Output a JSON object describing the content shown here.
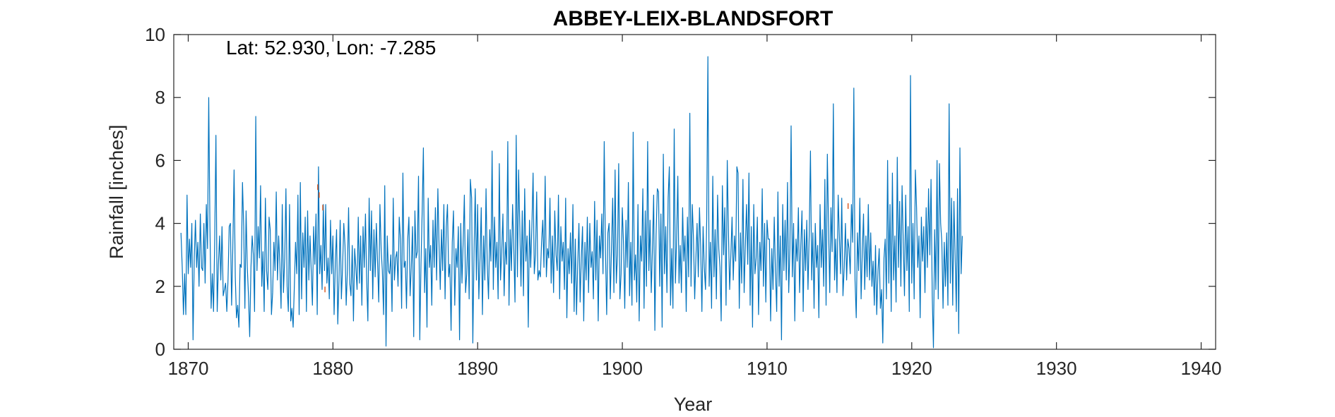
{
  "chart_data": {
    "type": "line",
    "title": "ABBEY-LEIX-BLANDSFORT",
    "xlabel": "Year",
    "ylabel": "Rainfall [inches]",
    "annotation": "Lat: 52.930, Lon: -7.285",
    "xlim": [
      1869,
      1941
    ],
    "ylim": [
      0,
      10
    ],
    "x_ticks": [
      1870,
      1880,
      1890,
      1900,
      1910,
      1920,
      1930,
      1940
    ],
    "y_ticks": [
      0,
      2,
      4,
      6,
      8,
      10
    ],
    "x_tick_labels": [
      "1870",
      "1880",
      "1890",
      "1900",
      "1910",
      "1920",
      "1930",
      "1940"
    ],
    "y_tick_labels": [
      "0",
      "2",
      "4",
      "6",
      "8",
      "10"
    ],
    "grid": false,
    "colors": {
      "series": "#0072BD",
      "secondary": "#D95319",
      "axes": "#262626"
    },
    "series": [
      {
        "start_year": 1869.5,
        "step_years": 0.08333,
        "values": [
          3.7,
          2.6,
          1.1,
          2.4,
          1.1,
          4.9,
          2.4,
          3.5,
          2.6,
          4.0,
          0.3,
          2.9,
          4.1,
          2.6,
          3.4,
          2.0,
          4.3,
          2.6,
          2.5,
          4.0,
          2.1,
          4.6,
          3.2,
          8.0,
          3.9,
          1.3,
          2.4,
          1.2,
          3.5,
          6.8,
          1.2,
          2.7,
          3.6,
          2.2,
          3.9,
          1.7,
          1.9,
          2.1,
          1.2,
          2.2,
          3.9,
          4.0,
          1.4,
          3.2,
          5.7,
          2.3,
          1.0,
          1.4,
          0.7,
          2.7,
          2.6,
          5.3,
          3.9,
          1.3,
          4.4,
          2.6,
          1.7,
          0.4,
          2.6,
          3.6,
          3.0,
          1.2,
          7.4,
          2.5,
          3.9,
          2.9,
          5.2,
          2.0,
          3.1,
          1.2,
          4.8,
          2.5,
          1.9,
          4.2,
          3.8,
          1.1,
          1.8,
          3.4,
          2.5,
          5.0,
          2.2,
          3.6,
          2.7,
          1.3,
          4.6,
          1.8,
          2.9,
          5.1,
          2.0,
          1.2,
          4.6,
          0.9,
          1.3,
          0.7,
          2.0,
          3.4,
          2.4,
          4.9,
          1.1,
          5.3,
          1.6,
          3.7,
          2.6,
          4.2,
          1.2,
          4.4,
          2.2,
          3.6,
          2.5,
          1.4,
          3.9,
          2.7,
          4.3,
          1.1,
          5.8,
          2.4,
          3.3,
          1.9,
          4.6,
          2.5,
          4.6,
          2.1,
          2.9,
          1.6,
          4.1,
          2.4,
          3.6,
          1.1,
          2.8,
          3.8,
          0.8,
          2.2,
          4.1,
          1.6,
          2.6,
          4.0,
          3.3,
          1.4,
          2.5,
          4.5,
          2.1,
          1.7,
          3.3,
          0.9,
          3.2,
          2.6,
          1.9,
          4.2,
          2.1,
          3.6,
          1.4,
          3.9,
          2.6,
          4.3,
          2.2,
          0.9,
          4.8,
          2.5,
          4.4,
          1.6,
          3.8,
          2.3,
          4.0,
          2.8,
          1.5,
          4.6,
          3.2,
          2.5,
          1.1,
          5.2,
          0.1,
          3.6,
          2.5,
          2.4,
          3.0,
          1.2,
          4.8,
          2.2,
          2.9,
          3.1,
          2.0,
          4.2,
          3.5,
          1.3,
          5.6,
          2.6,
          2.8,
          1.3,
          3.5,
          4.2,
          1.7,
          2.6,
          3.9,
          0.4,
          4.4,
          2.9,
          3.1,
          5.5,
          0.3,
          2.7,
          4.4,
          6.4,
          1.8,
          3.2,
          0.7,
          4.8,
          2.6,
          3.3,
          1.4,
          4.1,
          2.6,
          4.5,
          2.2,
          5.1,
          3.3,
          1.9,
          3.8,
          2.5,
          4.6,
          1.6,
          3.9,
          4.6,
          2.3,
          2.7,
          0.6,
          3.4,
          4.4,
          1.4,
          3.2,
          2.6,
          3.9,
          0.3,
          4.0,
          2.1,
          3.4,
          4.9,
          1.8,
          2.4,
          3.8,
          1.6,
          5.4,
          4.8,
          0.2,
          3.1,
          5.1,
          2.2,
          4.6,
          1.6,
          2.9,
          4.5,
          1.1,
          3.6,
          2.2,
          5.1,
          2.7,
          1.6,
          3.8,
          2.8,
          6.3,
          1.9,
          4.2,
          2.6,
          3.4,
          1.6,
          5.9,
          2.2,
          3.1,
          4.3,
          1.7,
          3.4,
          2.7,
          6.6,
          1.4,
          3.8,
          2.5,
          4.6,
          3.2,
          1.5,
          6.8,
          2.3,
          5.7,
          3.9,
          2.0,
          4.4,
          1.7,
          5.1,
          2.8,
          3.6,
          0.7,
          4.1,
          2.6,
          3.9,
          5.6,
          2.4,
          3.0,
          5.0,
          2.2,
          2.5,
          2.3,
          3.4,
          4.1,
          2.6,
          5.5,
          2.3,
          3.2,
          2.9,
          4.8,
          2.1,
          3.6,
          1.8,
          4.4,
          3.0,
          2.5,
          4.9,
          1.6,
          3.9,
          2.8,
          3.4,
          1.9,
          4.8,
          1.0,
          3.2,
          2.4,
          3.7,
          2.1,
          4.6,
          1.2,
          3.5,
          1.1,
          2.7,
          4.0,
          1.5,
          2.9,
          3.9,
          0.9,
          3.4,
          2.2,
          4.2,
          1.8,
          4.0,
          2.6,
          3.1,
          1.6,
          4.7,
          2.2,
          4.1,
          0.9,
          3.6,
          2.9,
          4.3,
          2.4,
          6.6,
          3.2,
          1.1,
          3.7,
          4.0,
          1.6,
          3.2,
          4.8,
          1.8,
          5.7,
          2.1,
          3.0,
          5.9,
          1.6,
          2.4,
          4.5,
          3.3,
          1.3,
          4.1,
          2.6,
          5.3,
          1.7,
          3.4,
          1.4,
          6.9,
          2.2,
          3.0,
          1.5,
          4.6,
          0.9,
          3.6,
          2.8,
          5.1,
          1.3,
          4.4,
          2.0,
          6.6,
          2.5,
          4.1,
          1.8,
          3.2,
          4.9,
          0.6,
          3.6,
          5.1,
          5.0,
          2.0,
          4.3,
          0.7,
          6.2,
          2.4,
          3.9,
          1.8,
          4.8,
          5.8,
          1.4,
          3.2,
          1.3,
          7.0,
          2.1,
          3.5,
          5.5,
          2.1,
          3.3,
          1.8,
          4.5,
          2.8,
          3.6,
          1.2,
          4.2,
          2.3,
          7.5,
          2.0,
          4.6,
          3.5,
          1.6,
          2.9,
          4.0,
          2.3,
          4.5,
          3.2,
          1.2,
          3.9,
          2.6,
          1.9,
          4.1,
          9.3,
          2.0,
          3.4,
          1.3,
          5.5,
          2.3,
          3.8,
          1.6,
          4.9,
          3.2,
          2.6,
          0.9,
          5.2,
          3.0,
          4.5,
          1.4,
          6.0,
          3.7,
          1.9,
          3.0,
          4.2,
          2.2,
          3.6,
          2.8,
          5.8,
          5.6,
          1.3,
          3.7,
          2.1,
          5.4,
          1.8,
          3.3,
          4.6,
          2.7,
          5.6,
          1.4,
          3.9,
          0.7,
          4.6,
          2.4,
          2.9,
          4.2,
          1.1,
          3.4,
          2.5,
          5.1,
          2.0,
          4.0,
          1.5,
          4.1,
          3.5,
          3.5,
          0.9,
          3.2,
          1.9,
          4.2,
          2.5,
          1.2,
          5.0,
          2.0,
          3.6,
          0.3,
          4.6,
          2.5,
          4.1,
          2.2,
          5.3,
          1.8,
          3.2,
          7.1,
          2.3,
          4.0,
          0.9,
          3.5,
          2.8,
          4.5,
          1.8,
          3.3,
          4.4,
          1.2,
          3.8,
          2.5,
          4.1,
          1.9,
          3.6,
          6.3,
          2.2,
          3.7,
          1.3,
          4.0,
          2.6,
          3.3,
          1.0,
          4.6,
          2.6,
          3.8,
          2.0,
          5.4,
          1.4,
          6.2,
          3.9,
          1.8,
          4.5,
          3.1,
          7.8,
          2.2,
          3.5,
          1.8,
          4.9,
          3.6,
          2.4,
          4.8,
          1.7,
          2.6,
          4.0,
          2.2,
          3.5,
          3.2,
          2.4,
          4.6,
          3.4,
          8.3,
          2.2,
          1.0,
          3.7,
          2.5,
          4.8,
          1.6,
          3.1,
          4.3,
          1.9,
          3.6,
          2.3,
          4.6,
          2.2,
          3.7,
          2.0,
          2.8,
          1.4,
          3.3,
          1.1,
          2.5,
          3.2,
          1.3,
          1.9,
          0.2,
          2.9,
          3.5,
          1.6,
          6.0,
          2.1,
          4.6,
          1.2,
          5.6,
          2.2,
          3.6,
          1.5,
          6.1,
          2.6,
          4.7,
          2.0,
          5.2,
          3.4,
          1.7,
          4.9,
          2.5,
          3.9,
          1.2,
          8.7,
          2.1,
          4.0,
          1.6,
          5.7,
          4.5,
          2.6,
          3.6,
          1.0,
          4.2,
          2.8,
          3.9,
          1.8,
          4.5,
          2.6,
          5.1,
          3.0,
          5.4,
          1.7,
          0.05,
          3.8,
          1.9,
          6.0,
          1.6,
          5.9,
          4.0,
          3.4,
          1.3,
          3.4,
          2.0,
          3.7,
          1.4,
          7.8,
          2.1,
          4.8,
          1.4,
          4.7,
          3.0,
          1.2,
          5.1,
          0.5,
          6.4,
          2.4,
          3.6
        ]
      },
      {
        "points": [
          [
            1878.95,
            5.15
          ],
          [
            1879.05,
            4.9
          ],
          [
            1879.3,
            4.5
          ],
          [
            1879.45,
            1.9
          ],
          [
            1915.6,
            4.55
          ]
        ]
      }
    ]
  }
}
